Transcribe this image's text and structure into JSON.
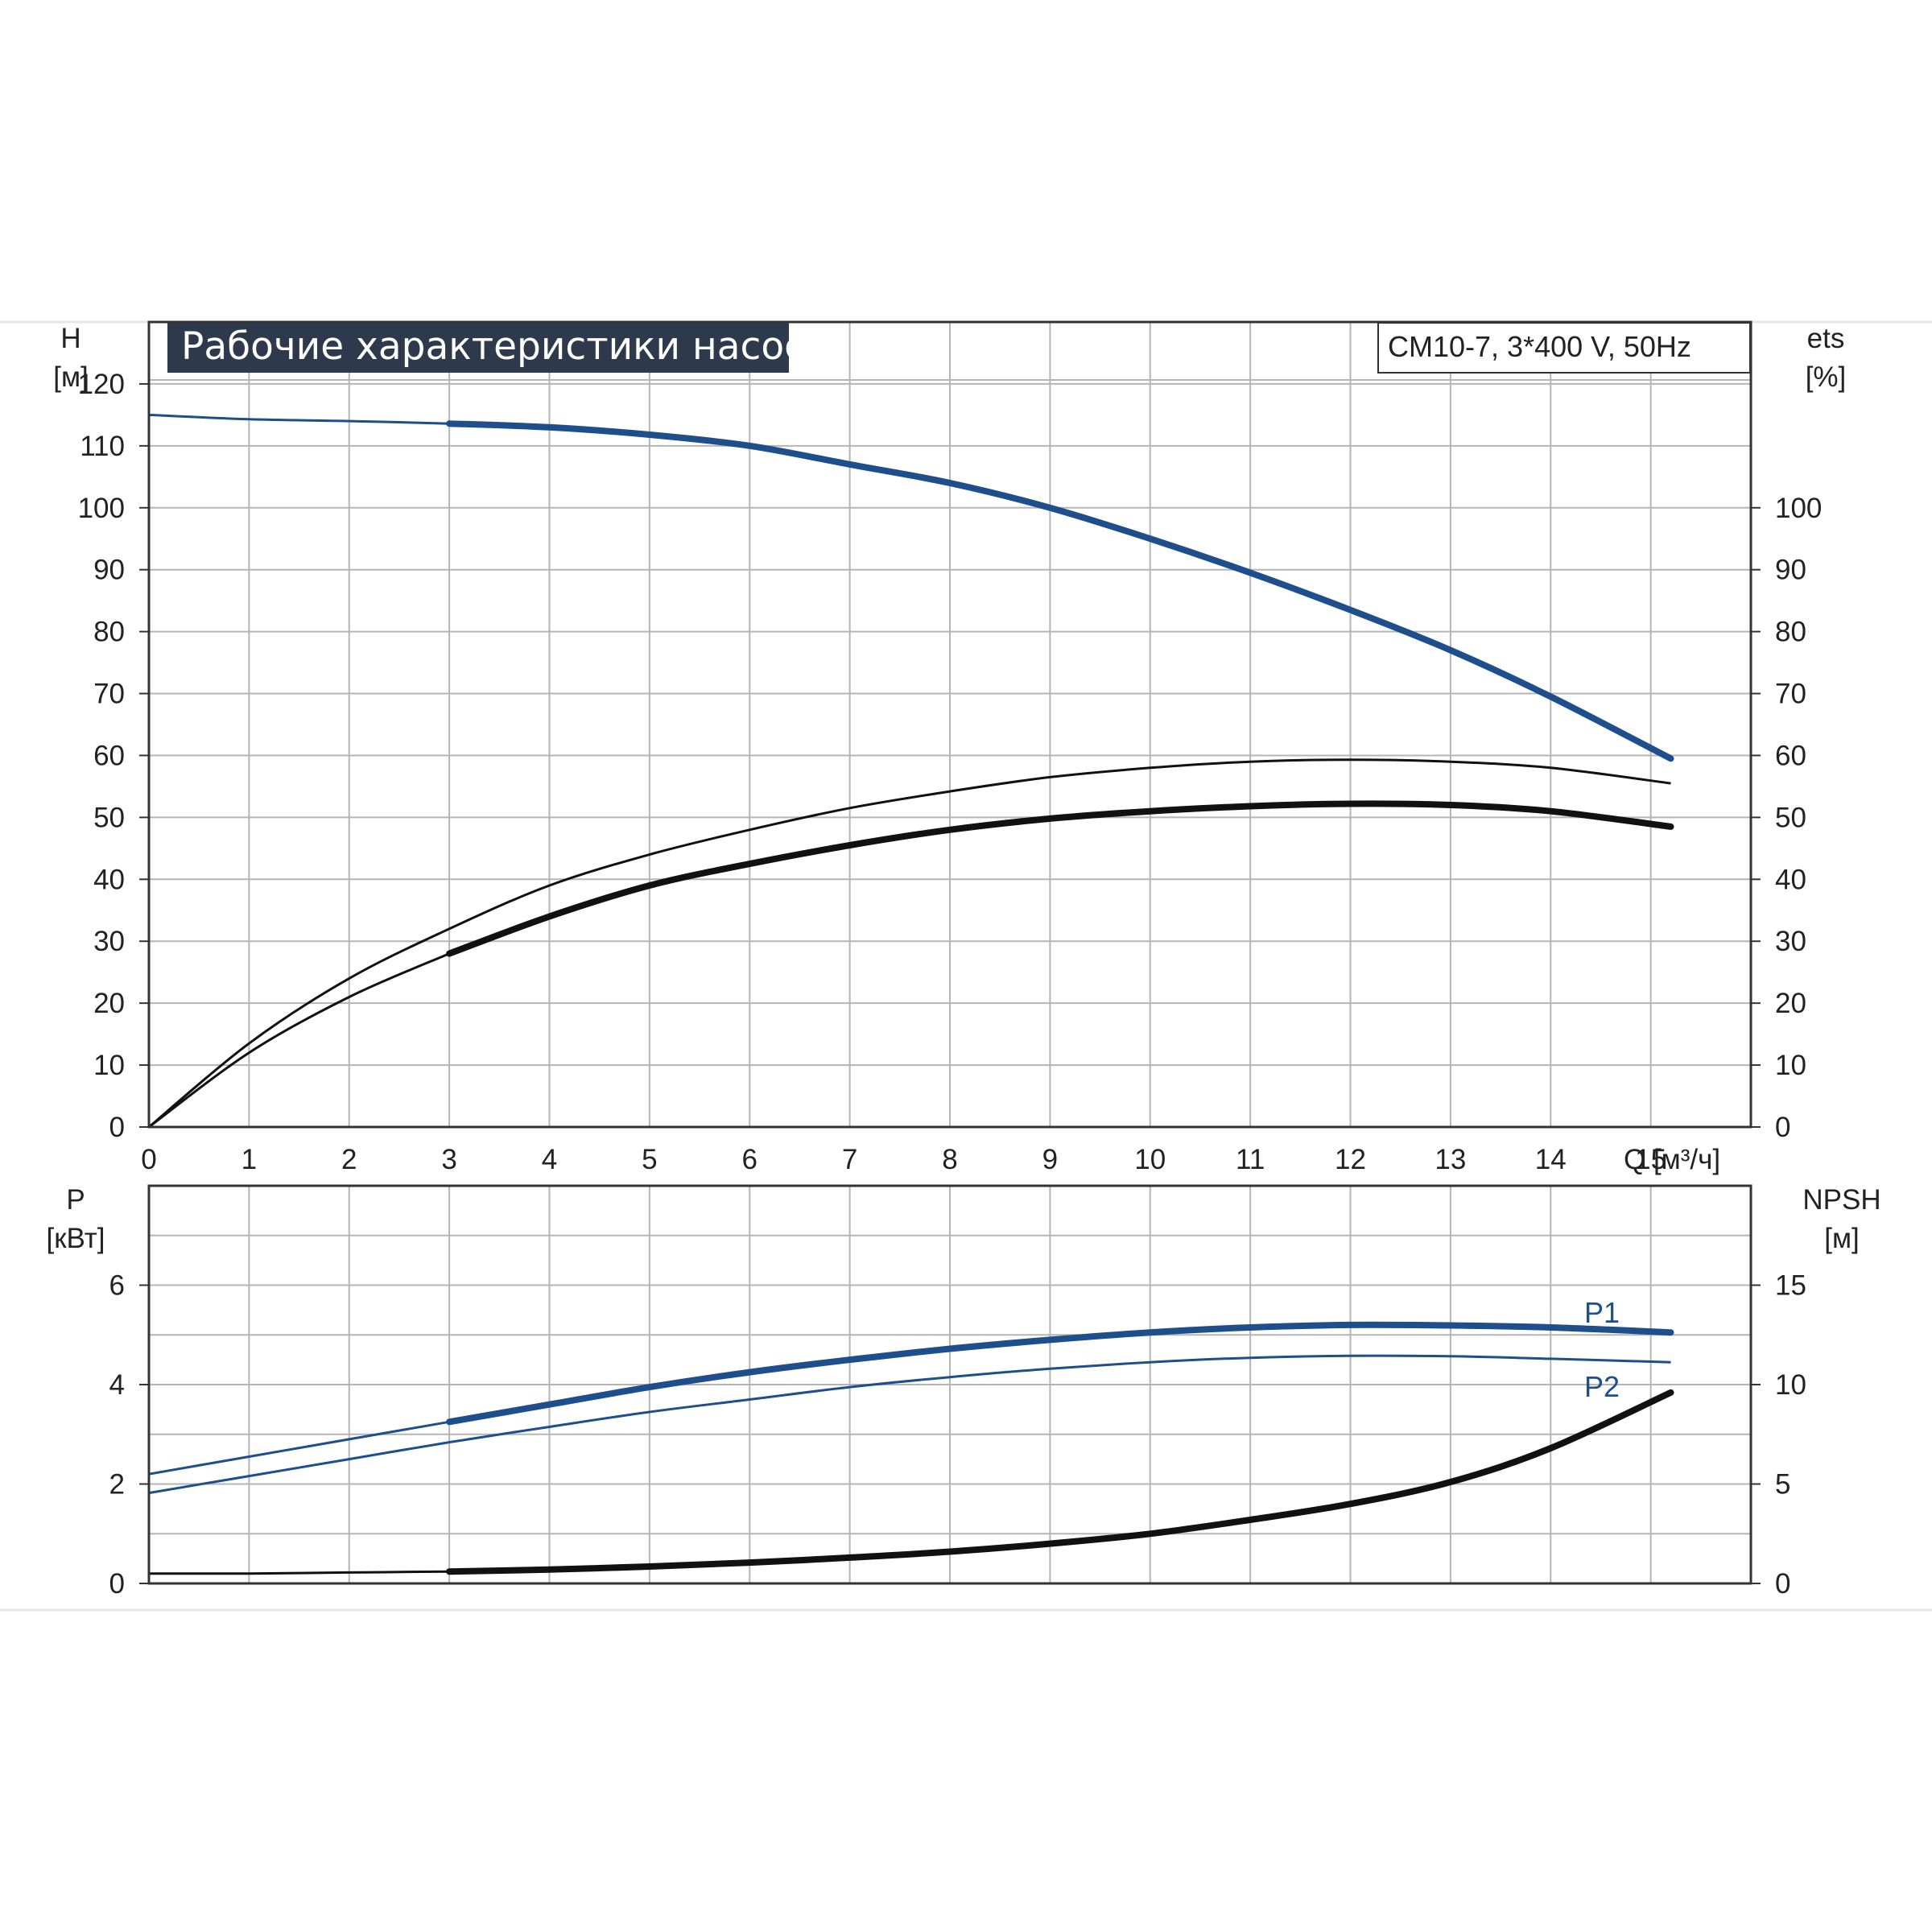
{
  "colors": {
    "blue": "#1f4e8c",
    "black": "#111111",
    "grid": "#b5b5b5",
    "title_bg": "#2e3a4b"
  },
  "title": "Рабочие характеристики насоса",
  "model": "CM10-7, 3*400 V, 50Hz",
  "chart_data": [
    {
      "type": "line",
      "title": "Рабочие характеристики насоса",
      "xlabel": "Q [м³/ч]",
      "xlabel_parts": [
        "Q",
        "[м³/ч]"
      ],
      "ylabel_left": [
        "H",
        "[м]"
      ],
      "ylabel_right": [
        "ets",
        "[%]"
      ],
      "xlim": [
        0,
        16
      ],
      "ylim_left": [
        0,
        130
      ],
      "ylim_right": [
        0,
        130
      ],
      "x_ticks": [
        "0",
        "1",
        "2",
        "3",
        "4",
        "5",
        "6",
        "7",
        "8",
        "9",
        "10",
        "11",
        "12",
        "13",
        "14",
        "15"
      ],
      "y_ticks_left": [
        "0",
        "10",
        "20",
        "30",
        "40",
        "50",
        "60",
        "70",
        "80",
        "90",
        "100",
        "110",
        "120"
      ],
      "y_ticks_right": [
        "0",
        "10",
        "20",
        "30",
        "40",
        "50",
        "60",
        "70",
        "80",
        "90",
        "100"
      ],
      "grid": true,
      "series": [
        {
          "axis": "left",
          "color": "#1f4e8c",
          "x": [
            0,
            1,
            2,
            3,
            4,
            5,
            6,
            7,
            8,
            9,
            10,
            11,
            12,
            13,
            14,
            15.2
          ],
          "y": [
            115,
            114.3,
            114,
            113.6,
            113,
            111.8,
            110,
            107,
            104,
            100,
            95,
            89.5,
            83.5,
            77,
            69.5,
            59.5
          ],
          "dashed_until": 3
        },
        {
          "axis": "right",
          "color": "#111111",
          "x": [
            0,
            1,
            2,
            3,
            4,
            5,
            6,
            7,
            8,
            9,
            10,
            11,
            12,
            13,
            14,
            15.2
          ],
          "y": [
            0,
            13.5,
            24,
            32,
            39,
            44,
            48,
            51.5,
            54.2,
            56.5,
            58,
            59,
            59.3,
            59,
            58,
            55.5
          ],
          "thin": true
        },
        {
          "axis": "right",
          "color": "#111111",
          "x": [
            0,
            1,
            2,
            3,
            4,
            5,
            6,
            7,
            8,
            9,
            10,
            11,
            12,
            13,
            14,
            15.2
          ],
          "y": [
            0,
            12,
            21,
            28,
            34,
            39,
            42.5,
            45.5,
            48,
            49.8,
            51,
            51.8,
            52.2,
            52,
            51,
            48.5
          ],
          "dashed_until": 3
        }
      ]
    },
    {
      "type": "line",
      "ylabel_left": [
        "P",
        "[кВт]"
      ],
      "ylabel_right": [
        "NPSH",
        "[м]"
      ],
      "xlim": [
        0,
        16
      ],
      "ylim_left": [
        0,
        8
      ],
      "ylim_right": [
        0,
        20
      ],
      "y_ticks_left": [
        "0",
        "2",
        "4",
        "6"
      ],
      "y_ticks_right": [
        "0",
        "5",
        "10",
        "15"
      ],
      "grid": true,
      "series": [
        {
          "name": "P1",
          "axis": "left",
          "color": "#1f4e8c",
          "x": [
            0,
            1,
            2,
            3,
            4,
            5,
            6,
            7,
            8,
            9,
            10,
            11,
            12,
            13,
            14,
            15.2
          ],
          "y": [
            2.2,
            2.55,
            2.9,
            3.25,
            3.6,
            3.95,
            4.25,
            4.5,
            4.72,
            4.9,
            5.05,
            5.15,
            5.2,
            5.19,
            5.15,
            5.05
          ],
          "dashed_until": 3
        },
        {
          "name": "P2",
          "axis": "left",
          "color": "#1f4e8c",
          "x": [
            0,
            1,
            2,
            3,
            4,
            5,
            6,
            7,
            8,
            9,
            10,
            11,
            12,
            13,
            14,
            15.2
          ],
          "y": [
            1.82,
            2.16,
            2.5,
            2.84,
            3.15,
            3.45,
            3.7,
            3.95,
            4.15,
            4.32,
            4.45,
            4.54,
            4.58,
            4.57,
            4.52,
            4.45
          ],
          "thin": true
        },
        {
          "axis": "right",
          "color": "#111111",
          "x": [
            0,
            1,
            2,
            3,
            4,
            5,
            6,
            7,
            8,
            9,
            10,
            11,
            12,
            13,
            14,
            15.2
          ],
          "y": [
            0.5,
            0.5,
            0.55,
            0.6,
            0.7,
            0.85,
            1.05,
            1.3,
            1.6,
            2.0,
            2.5,
            3.2,
            4.0,
            5.1,
            6.8,
            9.6
          ],
          "dashed_until": 3
        }
      ]
    }
  ]
}
